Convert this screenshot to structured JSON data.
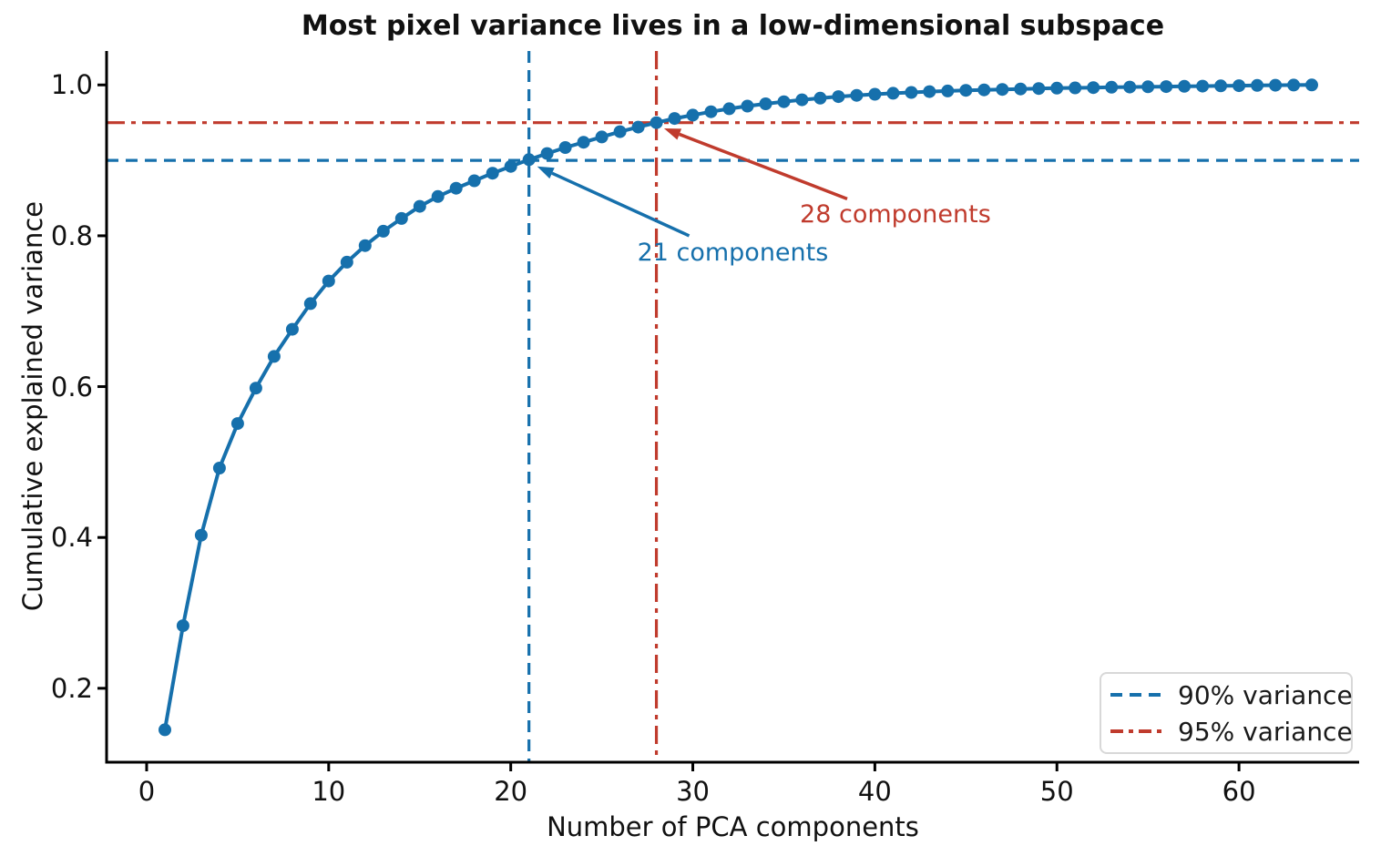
{
  "chart_data": {
    "type": "line",
    "title": "Most pixel variance lives in a low-dimensional subspace",
    "xlabel": "Number of PCA components",
    "ylabel": "Cumulative explained variance",
    "axes": {
      "xticks": [
        0,
        10,
        20,
        30,
        40,
        50,
        60
      ],
      "ytick_labels": [
        "0.2",
        "0.4",
        "0.6",
        "0.8",
        "1.0"
      ],
      "yticks": [
        0.2,
        0.4,
        0.6,
        0.8,
        1.0
      ],
      "xlim": [
        -2.2,
        66.6
      ],
      "ylim": [
        0.102,
        1.045
      ],
      "grid": false,
      "legend_position": "lower right",
      "spines": [
        "left",
        "bottom"
      ]
    },
    "series": [
      {
        "name": "cumulative explained variance",
        "color": "#1670ac",
        "marker": "circle",
        "x": [
          1,
          2,
          3,
          4,
          5,
          6,
          7,
          8,
          9,
          10,
          11,
          12,
          13,
          14,
          15,
          16,
          17,
          18,
          19,
          20,
          21,
          22,
          23,
          24,
          25,
          26,
          27,
          28,
          29,
          30,
          31,
          32,
          33,
          34,
          35,
          36,
          37,
          38,
          39,
          40,
          41,
          42,
          43,
          44,
          45,
          46,
          47,
          48,
          49,
          50,
          51,
          52,
          53,
          54,
          55,
          56,
          57,
          58,
          59,
          60,
          61,
          62,
          63,
          64
        ],
        "y": [
          0.145,
          0.283,
          0.403,
          0.492,
          0.551,
          0.598,
          0.64,
          0.676,
          0.71,
          0.74,
          0.765,
          0.787,
          0.806,
          0.823,
          0.839,
          0.852,
          0.863,
          0.873,
          0.883,
          0.892,
          0.901,
          0.909,
          0.917,
          0.924,
          0.931,
          0.938,
          0.944,
          0.95,
          0.9555,
          0.96,
          0.9645,
          0.9685,
          0.972,
          0.975,
          0.9778,
          0.9803,
          0.9825,
          0.9845,
          0.9862,
          0.9877,
          0.989,
          0.9901,
          0.9911,
          0.992,
          0.9928,
          0.9935,
          0.9941,
          0.9947,
          0.9952,
          0.9957,
          0.9961,
          0.9965,
          0.9969,
          0.9972,
          0.9975,
          0.9978,
          0.9981,
          0.9984,
          0.9987,
          0.999,
          0.9993,
          0.9996,
          0.9998,
          1.0
        ]
      }
    ],
    "thresholds": [
      {
        "label": "90% variance",
        "variance": 0.9,
        "components": 21,
        "color": "#1670ac",
        "style": "dashed"
      },
      {
        "label": "95% variance",
        "variance": 0.95,
        "components": 28,
        "color": "#c03b2d",
        "style": "dashdot"
      }
    ],
    "annotations": [
      {
        "text": "21 components",
        "color": "#1670ac",
        "text_xy": [
          26.95,
          0.796
        ],
        "arrow_tail_xy": [
          29.8,
          0.8
        ],
        "arrow_tip_xy": [
          21.45,
          0.892
        ]
      },
      {
        "text": "28 components",
        "color": "#c03b2d",
        "text_xy": [
          35.88,
          0.847
        ],
        "arrow_tail_xy": [
          38.48,
          0.849
        ],
        "arrow_tip_xy": [
          28.42,
          0.9424
        ]
      }
    ],
    "axis_color": "#000000"
  }
}
